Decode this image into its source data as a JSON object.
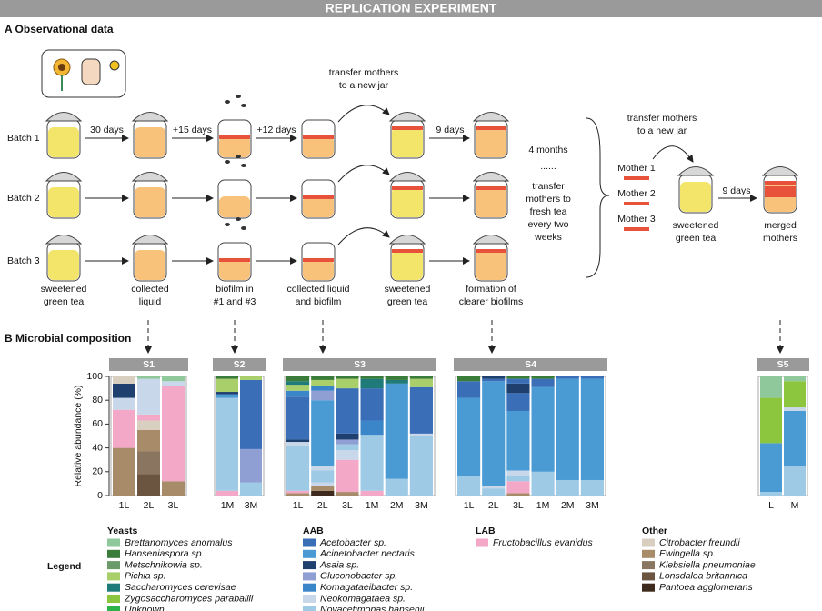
{
  "header": {
    "title": "REPLICATION EXPERIMENT"
  },
  "section_a": {
    "title": "A Observational data",
    "batches": [
      "Batch 1",
      "Batch 2",
      "Batch 3"
    ],
    "steps": [
      "30 days",
      "+15 days",
      "+12 days"
    ],
    "transfer_1": [
      "transfer mothers",
      "to a new jar"
    ],
    "step_9": "9 days",
    "stage_labels": [
      [
        "sweetened",
        "green tea"
      ],
      [
        "collected",
        "liquid"
      ],
      [
        "biofilm in",
        "#1 and #3"
      ],
      [
        "collected liquid",
        "and biofilm"
      ],
      [
        "sweetened",
        "green tea"
      ],
      [
        "formation of",
        "clearer biofilms"
      ]
    ],
    "summary": [
      "4 months",
      "......",
      "transfer",
      "mothers to",
      "fresh tea",
      "every two",
      "weeks"
    ],
    "mothers": [
      "Mother 1",
      "Mother 2",
      "Mother 3"
    ],
    "transfer_2": [
      "transfer mothers",
      "to a new jar"
    ],
    "final_step": "9 days",
    "final_labels": [
      [
        "sweetened",
        "green tea"
      ],
      [
        "merged",
        "mothers"
      ]
    ]
  },
  "section_b": {
    "title": "B Microbial composition",
    "y_label": "Relative abundance (%)",
    "ylim": [
      0,
      100
    ],
    "yticks": [
      0,
      20,
      40,
      60,
      80,
      100
    ],
    "panels": [
      {
        "name": "S1",
        "bars": [
          {
            "label": "1L",
            "segments": [
              {
                "value": 40,
                "color": "#a88c6a"
              },
              {
                "value": 32,
                "color": "#f4a8c8"
              },
              {
                "value": 10,
                "color": "#c8d8ea"
              },
              {
                "value": 12,
                "color": "#1f3f6e"
              },
              {
                "value": 6,
                "color": "#d8cfc0"
              }
            ]
          },
          {
            "label": "2L",
            "segments": [
              {
                "value": 18,
                "color": "#6b5540"
              },
              {
                "value": 19,
                "color": "#8a7560"
              },
              {
                "value": 18,
                "color": "#a88c6a"
              },
              {
                "value": 8,
                "color": "#d8cfc0"
              },
              {
                "value": 5,
                "color": "#f4a8c8"
              },
              {
                "value": 30,
                "color": "#c8d8ea"
              },
              {
                "value": 2,
                "color": "#8fc89a"
              }
            ]
          },
          {
            "label": "3L",
            "segments": [
              {
                "value": 12,
                "color": "#a88c6a"
              },
              {
                "value": 80,
                "color": "#f4a8c8"
              },
              {
                "value": 4,
                "color": "#c8d8ea"
              },
              {
                "value": 4,
                "color": "#8fc89a"
              }
            ]
          }
        ]
      },
      {
        "name": "S2",
        "bars": [
          {
            "label": "1M",
            "segments": [
              {
                "value": 4,
                "color": "#f4a8c8"
              },
              {
                "value": 78,
                "color": "#9ecae6"
              },
              {
                "value": 3,
                "color": "#4a9ad4"
              },
              {
                "value": 2,
                "color": "#1f3f6e"
              },
              {
                "value": 11,
                "color": "#a8cf6a"
              },
              {
                "value": 2,
                "color": "#3a7d3a"
              }
            ]
          },
          {
            "label": "3M",
            "segments": [
              {
                "value": 11,
                "color": "#9ecae6"
              },
              {
                "value": 28,
                "color": "#8f9fd4"
              },
              {
                "value": 58,
                "color": "#3a6fb8"
              },
              {
                "value": 3,
                "color": "#a8cf6a"
              }
            ]
          }
        ]
      },
      {
        "name": "S3",
        "bars": [
          {
            "label": "1L",
            "segments": [
              {
                "value": 2,
                "color": "#a88c6a"
              },
              {
                "value": 2,
                "color": "#f4a8c8"
              },
              {
                "value": 38,
                "color": "#9ecae6"
              },
              {
                "value": 3,
                "color": "#c8d8ea"
              },
              {
                "value": 2,
                "color": "#1f3f6e"
              },
              {
                "value": 36,
                "color": "#3a6fb8"
              },
              {
                "value": 5,
                "color": "#3a86c8"
              },
              {
                "value": 5,
                "color": "#a8cf6a"
              },
              {
                "value": 3,
                "color": "#1f7a7a"
              },
              {
                "value": 4,
                "color": "#3a7d3a"
              }
            ]
          },
          {
            "label": "2L",
            "segments": [
              {
                "value": 4,
                "color": "#3d2a1c"
              },
              {
                "value": 4,
                "color": "#a88c6a"
              },
              {
                "value": 3,
                "color": "#c8d8ea"
              },
              {
                "value": 10,
                "color": "#9ecae6"
              },
              {
                "value": 4,
                "color": "#c8d8ea"
              },
              {
                "value": 55,
                "color": "#4a9ad4"
              },
              {
                "value": 8,
                "color": "#8f9fd4"
              },
              {
                "value": 4,
                "color": "#3a86c8"
              },
              {
                "value": 5,
                "color": "#a8cf6a"
              },
              {
                "value": 3,
                "color": "#3a7d3a"
              }
            ]
          },
          {
            "label": "3L",
            "segments": [
              {
                "value": 3,
                "color": "#a88c6a"
              },
              {
                "value": 27,
                "color": "#f4a8c8"
              },
              {
                "value": 8,
                "color": "#c8d8ea"
              },
              {
                "value": 5,
                "color": "#9ecae6"
              },
              {
                "value": 4,
                "color": "#8f9fd4"
              },
              {
                "value": 5,
                "color": "#1f3f6e"
              },
              {
                "value": 38,
                "color": "#3a6fb8"
              },
              {
                "value": 8,
                "color": "#a8cf6a"
              },
              {
                "value": 2,
                "color": "#3a7d3a"
              }
            ]
          },
          {
            "label": "1M",
            "segments": [
              {
                "value": 4,
                "color": "#f4a8c8"
              },
              {
                "value": 47,
                "color": "#9ecae6"
              },
              {
                "value": 12,
                "color": "#3a86c8"
              },
              {
                "value": 27,
                "color": "#3a6fb8"
              },
              {
                "value": 8,
                "color": "#1f7a7a"
              },
              {
                "value": 2,
                "color": "#3a7d3a"
              }
            ]
          },
          {
            "label": "2M",
            "segments": [
              {
                "value": 14,
                "color": "#9ecae6"
              },
              {
                "value": 80,
                "color": "#4a9ad4"
              },
              {
                "value": 3,
                "color": "#1f7a7a"
              },
              {
                "value": 3,
                "color": "#3a7d3a"
              }
            ]
          },
          {
            "label": "3M",
            "segments": [
              {
                "value": 50,
                "color": "#9ecae6"
              },
              {
                "value": 2,
                "color": "#c8d8ea"
              },
              {
                "value": 39,
                "color": "#3a6fb8"
              },
              {
                "value": 7,
                "color": "#a8cf6a"
              },
              {
                "value": 2,
                "color": "#3a7d3a"
              }
            ]
          }
        ]
      },
      {
        "name": "S4",
        "bars": [
          {
            "label": "1L",
            "segments": [
              {
                "value": 16,
                "color": "#9ecae6"
              },
              {
                "value": 66,
                "color": "#4a9ad4"
              },
              {
                "value": 14,
                "color": "#3a6fb8"
              },
              {
                "value": 4,
                "color": "#3a7d3a"
              }
            ]
          },
          {
            "label": "2L",
            "segments": [
              {
                "value": 6,
                "color": "#9ecae6"
              },
              {
                "value": 2,
                "color": "#c8d8ea"
              },
              {
                "value": 88,
                "color": "#4a9ad4"
              },
              {
                "value": 2,
                "color": "#3a6fb8"
              },
              {
                "value": 2,
                "color": "#1f3f6e"
              }
            ]
          },
          {
            "label": "3L",
            "segments": [
              {
                "value": 2,
                "color": "#a88c6a"
              },
              {
                "value": 10,
                "color": "#f4a8c8"
              },
              {
                "value": 5,
                "color": "#9ecae6"
              },
              {
                "value": 4,
                "color": "#c8d8ea"
              },
              {
                "value": 50,
                "color": "#4a9ad4"
              },
              {
                "value": 15,
                "color": "#3a6fb8"
              },
              {
                "value": 8,
                "color": "#1f3f6e"
              },
              {
                "value": 4,
                "color": "#3a6fb8"
              },
              {
                "value": 2,
                "color": "#3a7d3a"
              }
            ]
          },
          {
            "label": "1M",
            "segments": [
              {
                "value": 20,
                "color": "#9ecae6"
              },
              {
                "value": 71,
                "color": "#4a9ad4"
              },
              {
                "value": 7,
                "color": "#3a6fb8"
              },
              {
                "value": 2,
                "color": "#3a7d3a"
              }
            ]
          },
          {
            "label": "2M",
            "segments": [
              {
                "value": 13,
                "color": "#9ecae6"
              },
              {
                "value": 85,
                "color": "#4a9ad4"
              },
              {
                "value": 2,
                "color": "#3a6fb8"
              }
            ]
          },
          {
            "label": "3M",
            "segments": [
              {
                "value": 13,
                "color": "#9ecae6"
              },
              {
                "value": 85,
                "color": "#4a9ad4"
              },
              {
                "value": 2,
                "color": "#3a6fb8"
              }
            ]
          }
        ]
      },
      {
        "name": "S5",
        "bars": [
          {
            "label": "L",
            "segments": [
              {
                "value": 3,
                "color": "#9ecae6"
              },
              {
                "value": 41,
                "color": "#4a9ad4"
              },
              {
                "value": 38,
                "color": "#8cc63f"
              },
              {
                "value": 18,
                "color": "#8fc89a"
              }
            ]
          },
          {
            "label": "M",
            "segments": [
              {
                "value": 25,
                "color": "#9ecae6"
              },
              {
                "value": 46,
                "color": "#4a9ad4"
              },
              {
                "value": 3,
                "color": "#c8d8ea"
              },
              {
                "value": 22,
                "color": "#8cc63f"
              },
              {
                "value": 4,
                "color": "#8fc89a"
              }
            ]
          }
        ]
      }
    ]
  },
  "legend": {
    "title": "Legend",
    "groups": [
      {
        "title": "Yeasts",
        "items": [
          {
            "label": "Brettanomyces anomalus",
            "color": "#8fc89a"
          },
          {
            "label": "Hanseniaspora sp.",
            "color": "#3a7d3a"
          },
          {
            "label": "Metschnikowia sp.",
            "color": "#6a9a6a"
          },
          {
            "label": "Pichia sp.",
            "color": "#a8cf6a"
          },
          {
            "label": "Saccharomyces cerevisae",
            "color": "#1f7a7a"
          },
          {
            "label": "Zygosaccharomyces parabailli",
            "color": "#8cc63f"
          },
          {
            "label": "Unknown",
            "color": "#2db34a"
          }
        ]
      },
      {
        "title": "AAB",
        "items": [
          {
            "label": "Acetobacter sp.",
            "color": "#3a6fb8"
          },
          {
            "label": "Acinetobacter nectaris",
            "color": "#4a9ad4"
          },
          {
            "label": "Asaia sp.",
            "color": "#1f3f6e"
          },
          {
            "label": "Gluconobacter sp.",
            "color": "#8f9fd4"
          },
          {
            "label": "Komagataeibacter sp.",
            "color": "#3a86c8"
          },
          {
            "label": "Neokomagataea sp.",
            "color": "#c8d8ea"
          },
          {
            "label": "Novacetimonas hansenii",
            "color": "#9ecae6"
          }
        ]
      },
      {
        "title": "LAB",
        "items": [
          {
            "label": "Fructobacillus evanidus",
            "color": "#f4a8c8"
          }
        ]
      },
      {
        "title": "Other",
        "items": [
          {
            "label": "Citrobacter freundii",
            "color": "#d8cfc0"
          },
          {
            "label": "Ewingella sp.",
            "color": "#a88c6a"
          },
          {
            "label": "Klebsiella pneumoniae",
            "color": "#8a7560"
          },
          {
            "label": "Lonsdalea britannica",
            "color": "#6b5540"
          },
          {
            "label": "Pantoea agglomerans",
            "color": "#3d2a1c"
          }
        ]
      }
    ]
  }
}
